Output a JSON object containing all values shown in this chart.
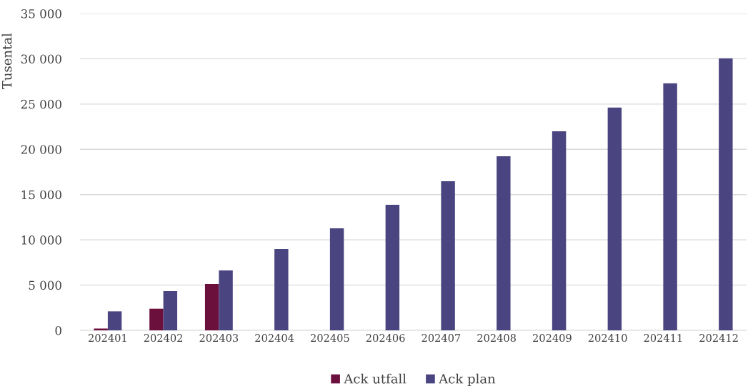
{
  "chart_data": {
    "type": "bar",
    "ylabel": "Tusental",
    "categories": [
      "202401",
      "202402",
      "202403",
      "202404",
      "202405",
      "202406",
      "202407",
      "202408",
      "202409",
      "202410",
      "202411",
      "202412"
    ],
    "series": [
      {
        "name": "Ack utfall",
        "color": "#6b0f3c",
        "values": [
          200,
          2390,
          5130,
          null,
          null,
          null,
          null,
          null,
          null,
          null,
          null,
          null
        ]
      },
      {
        "name": "Ack plan",
        "color": "#4a4580",
        "values": [
          2100,
          4340,
          6620,
          8990,
          11280,
          13880,
          16480,
          19240,
          22000,
          24610,
          27290,
          30050
        ]
      }
    ],
    "ylim": [
      0,
      35000
    ],
    "yticks": [
      {
        "value": 0,
        "label": "0"
      },
      {
        "value": 5000,
        "label": "5 000"
      },
      {
        "value": 10000,
        "label": "10 000"
      },
      {
        "value": 15000,
        "label": "15 000"
      },
      {
        "value": 20000,
        "label": "20 000"
      },
      {
        "value": 25000,
        "label": "25 000"
      },
      {
        "value": 30000,
        "label": "30 000"
      },
      {
        "value": 35000,
        "label": "35 000"
      }
    ],
    "grid": "y",
    "legend": "bottom"
  }
}
